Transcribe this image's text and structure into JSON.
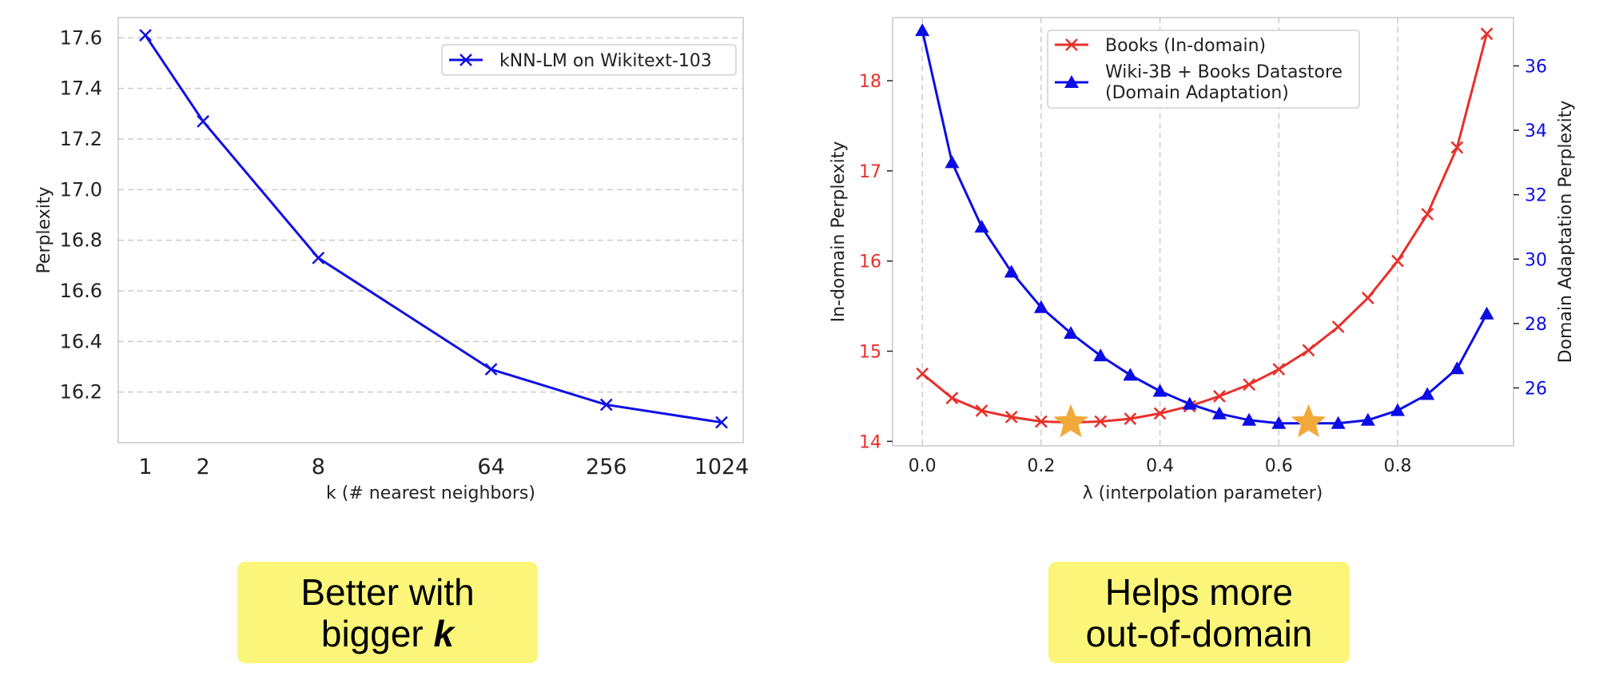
{
  "chart_data": [
    {
      "type": "line",
      "xlabel": "k (# nearest neighbors)",
      "ylabel": "Perplexity",
      "x_scale": "log",
      "x": [
        1,
        2,
        8,
        64,
        256,
        1024
      ],
      "x_tick_labels": [
        "1",
        "2",
        "8",
        "64",
        "256",
        "1024"
      ],
      "ylim": [
        16.0,
        17.68
      ],
      "y_ticks": [
        "16.2",
        "16.4",
        "16.6",
        "16.8",
        "17.0",
        "17.2",
        "17.4",
        "17.6"
      ],
      "grid": "horizontal dashed",
      "legend_position": "top-right",
      "series": [
        {
          "name": "kNN-LM on Wikitext-103",
          "color": "#1010e6",
          "marker": "x",
          "values": [
            17.61,
            17.27,
            16.73,
            16.29,
            16.15,
            16.08
          ]
        }
      ]
    },
    {
      "type": "line",
      "xlabel": "λ (interpolation parameter)",
      "ylabel_left": "In-domain Perplexity",
      "ylabel_right": "Domain Adaptation Perplexity",
      "x_ticks": [
        "0.0",
        "0.2",
        "0.4",
        "0.6",
        "0.8"
      ],
      "xlim": [
        -0.05,
        0.995
      ],
      "ylim_left": [
        13.95,
        18.7
      ],
      "y_ticks_left": [
        "14",
        "15",
        "16",
        "17",
        "18"
      ],
      "ylim_right": [
        24.2,
        37.5
      ],
      "y_ticks_right": [
        "26",
        "28",
        "30",
        "32",
        "34",
        "36"
      ],
      "grid": "vertical dashed",
      "legend_position": "top-center",
      "x": [
        0.0,
        0.05,
        0.1,
        0.15,
        0.2,
        0.25,
        0.3,
        0.35,
        0.4,
        0.45,
        0.5,
        0.55,
        0.6,
        0.65,
        0.7,
        0.75,
        0.8,
        0.85,
        0.9,
        0.95
      ],
      "series": [
        {
          "name": "Books (In-domain)",
          "axis": "left",
          "color": "#e8302a",
          "marker": "x",
          "values": [
            14.75,
            14.48,
            14.34,
            14.27,
            14.22,
            14.21,
            14.22,
            14.25,
            14.31,
            14.39,
            14.5,
            14.63,
            14.8,
            15.01,
            15.27,
            15.59,
            16.0,
            16.52,
            17.26,
            18.52
          ]
        },
        {
          "name": "Wiki-3B + Books Datastore",
          "name_line2": "(Domain Adaptation)",
          "axis": "right",
          "color": "#0c0ce6",
          "marker": "triangle",
          "values": [
            37.1,
            33.0,
            31.0,
            29.6,
            28.5,
            27.7,
            27.0,
            26.4,
            25.9,
            25.5,
            25.2,
            25.0,
            24.9,
            24.9,
            24.9,
            25.0,
            25.3,
            25.8,
            26.6,
            28.3
          ]
        }
      ],
      "star_markers": {
        "color": "#f2a93b",
        "x": [
          0.25,
          0.65
        ],
        "y_left": [
          14.21,
          14.21
        ]
      }
    }
  ],
  "callouts": {
    "left": {
      "line1": "Better with",
      "line2_prefix": "bigger ",
      "line2_emph": "k"
    },
    "right": {
      "line1": "Helps more",
      "line2": "out-of-domain"
    }
  }
}
